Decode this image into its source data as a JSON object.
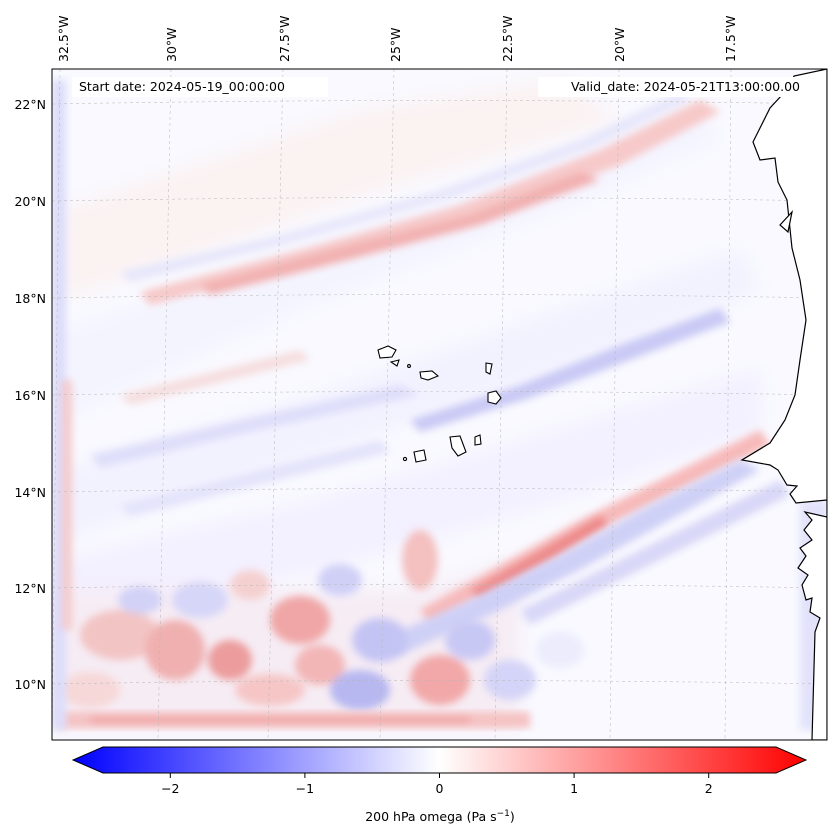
{
  "map": {
    "start_date": "Start date: 2024-05-19_00:00:00",
    "valid_date": "Valid_date: 2024-05-21T13:00:00.00",
    "lon_labels": [
      "32.5°W",
      "30°W",
      "27.5°W",
      "25°W",
      "22.5°W",
      "20°W",
      "17.5°W"
    ],
    "lat_labels": [
      "22°N",
      "20°N",
      "18°N",
      "16°N",
      "14°N",
      "12°N",
      "10°N"
    ],
    "gridlines": true,
    "field": "200 hPa omega",
    "features": [
      "coastline-west-africa",
      "cape-verde-islands"
    ]
  },
  "colorbar": {
    "label": "200 hPa omega (Pa s",
    "label_exp": "−1",
    "label_end": ")",
    "ticks": [
      "−2",
      "−1",
      "0",
      "1",
      "2"
    ],
    "tick_values": [
      -2,
      -1,
      0,
      1,
      2
    ],
    "range": [
      -2.5,
      2.5
    ],
    "cmap": "bwr",
    "color_min": "#0000ff",
    "color_mid": "#ffffff",
    "color_max": "#ff0000",
    "extend": "both"
  }
}
